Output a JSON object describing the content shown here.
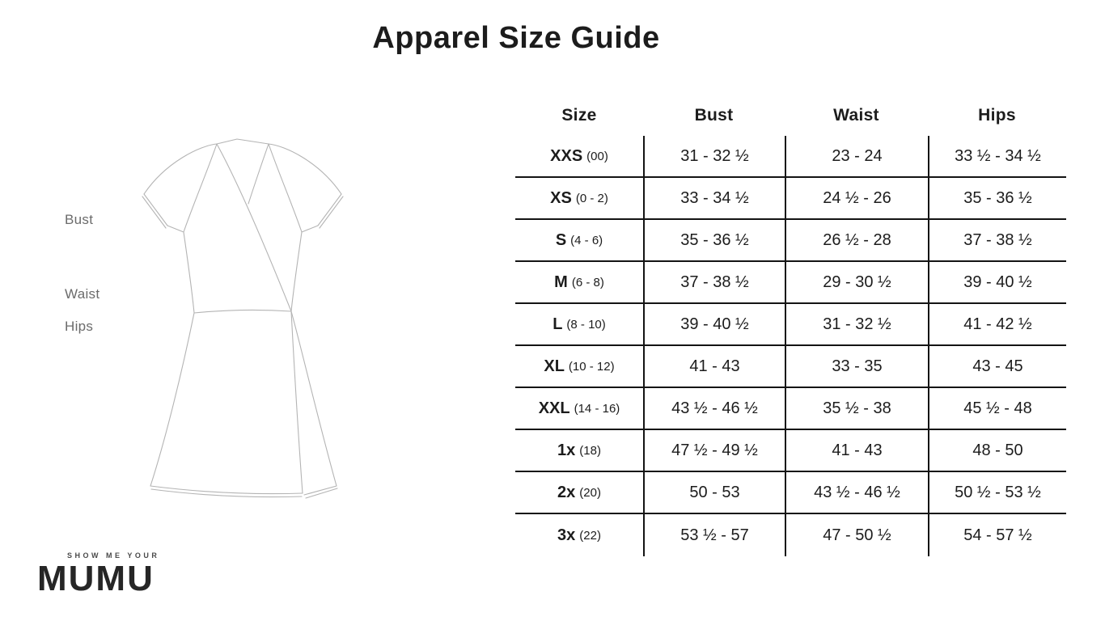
{
  "title": "Apparel Size Guide",
  "measurement_labels": {
    "bust": "Bust",
    "waist": "Waist",
    "hips": "Hips"
  },
  "logo": {
    "tagline": "SHOW ME YOUR",
    "brand": "MUMU"
  },
  "table": {
    "columns": {
      "size": "Size",
      "bust": "Bust",
      "waist": "Waist",
      "hips": "Hips"
    },
    "rows": [
      {
        "size": "XXS",
        "note": "(00)",
        "bust": "31 - 32 ½",
        "waist": "23 - 24",
        "hips": "33 ½ - 34 ½"
      },
      {
        "size": "XS",
        "note": "(0 - 2)",
        "bust": "33 - 34 ½",
        "waist": "24 ½ - 26",
        "hips": "35 - 36 ½"
      },
      {
        "size": "S",
        "note": "(4 - 6)",
        "bust": "35 - 36 ½",
        "waist": "26 ½ - 28",
        "hips": "37 - 38 ½"
      },
      {
        "size": "M",
        "note": "(6 - 8)",
        "bust": "37 - 38 ½",
        "waist": "29 - 30 ½",
        "hips": "39 - 40 ½"
      },
      {
        "size": "L",
        "note": "(8 - 10)",
        "bust": "39 - 40 ½",
        "waist": "31 - 32 ½",
        "hips": "41 - 42 ½"
      },
      {
        "size": "XL",
        "note": "(10 - 12)",
        "bust": "41 - 43",
        "waist": "33 - 35",
        "hips": "43 - 45"
      },
      {
        "size": "XXL",
        "note": "(14 - 16)",
        "bust": "43 ½ - 46 ½",
        "waist": "35 ½ - 38",
        "hips": "45 ½ - 48"
      },
      {
        "size": "1x",
        "note": "(18)",
        "bust": "47 ½ - 49 ½",
        "waist": "41 - 43",
        "hips": "48 - 50"
      },
      {
        "size": "2x",
        "note": "(20)",
        "bust": "50 - 53",
        "waist": "43 ½ - 46 ½",
        "hips": "50 ½ - 53 ½"
      },
      {
        "size": "3x",
        "note": "(22)",
        "bust": "53 ½ - 57",
        "waist": "47 - 50 ½",
        "hips": "54 - 57 ½"
      }
    ]
  },
  "colors": {
    "table_line": "#141414",
    "text": "#1c1c1c",
    "label_gray": "#6b6b6b",
    "sketch_gray": "#b4b4b4"
  }
}
